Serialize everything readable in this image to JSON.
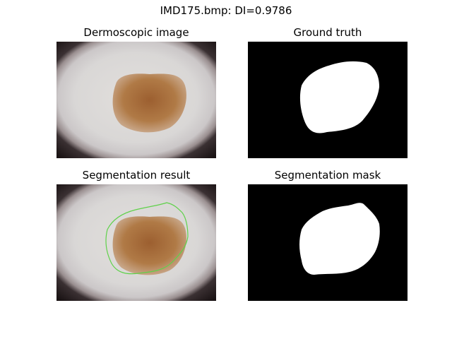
{
  "figure": {
    "title": "IMD175.bmp: DI=0.9786"
  },
  "panels": {
    "dermoscopic": {
      "title": "Dermoscopic image"
    },
    "ground_truth": {
      "title": "Ground truth"
    },
    "segmentation_result": {
      "title": "Segmentation result"
    },
    "segmentation_mask": {
      "title": "Segmentation mask"
    }
  },
  "colors": {
    "contour": "#5fd14a",
    "mask_background": "#000000",
    "mask_foreground": "#ffffff"
  }
}
